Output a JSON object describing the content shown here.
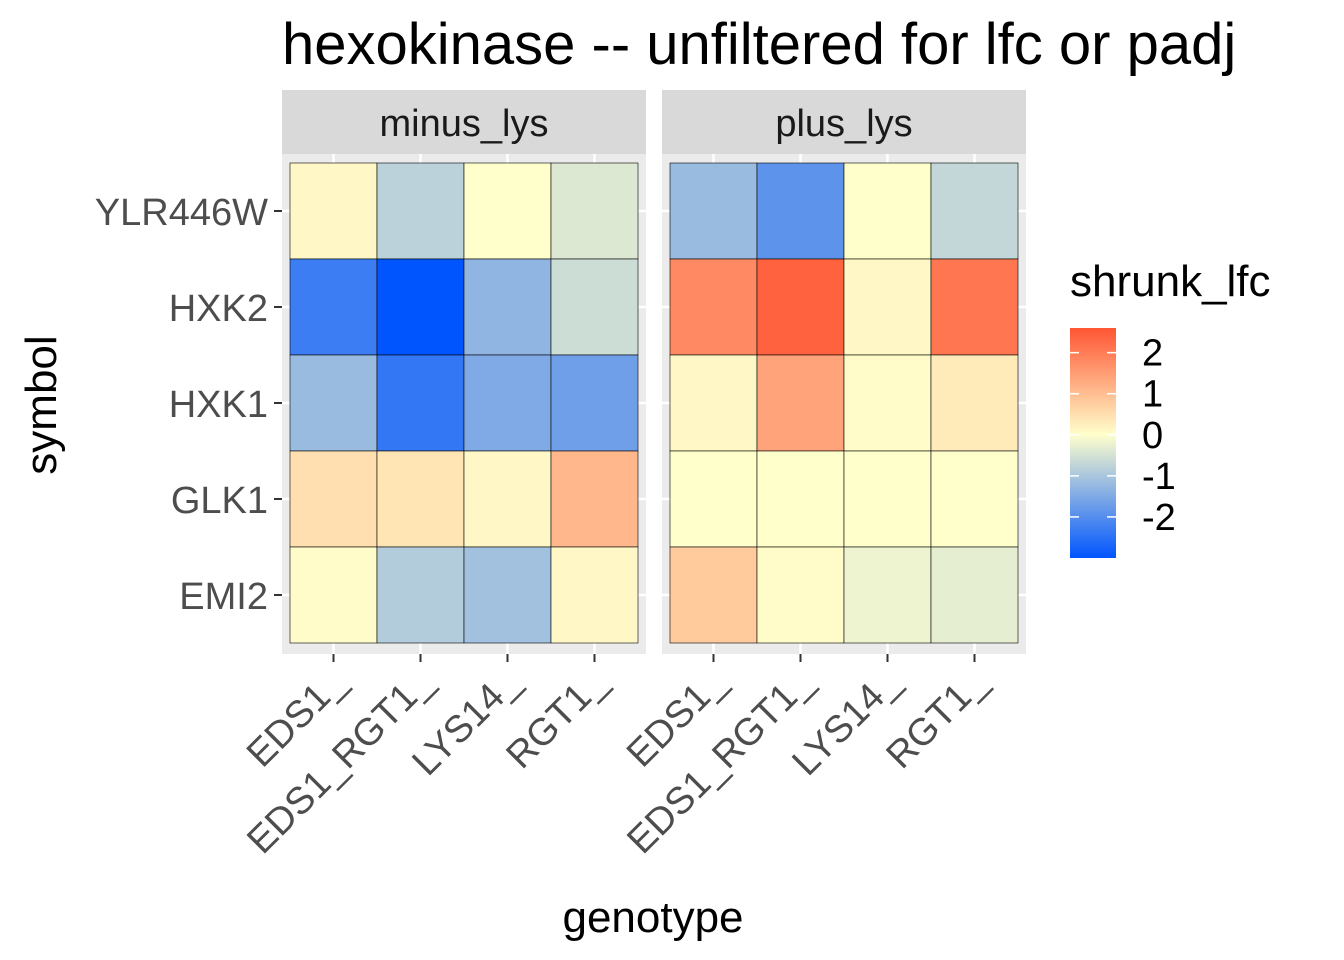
{
  "chart_data": {
    "type": "heatmap",
    "title": "hexokinase -- unfiltered for lfc or padj",
    "xlabel": "genotype",
    "ylabel": "symbol",
    "facets": [
      "minus_lys",
      "plus_lys"
    ],
    "x_categories": [
      "EDS1_",
      "EDS1_RGT1_",
      "LYS14_",
      "RGT1_"
    ],
    "y_categories": [
      "YLR446W",
      "HXK2",
      "HXK1",
      "GLK1",
      "EMI2"
    ],
    "values": {
      "minus_lys": [
        [
          0.1,
          -0.8,
          0.0,
          -0.4
        ],
        [
          -2.3,
          -3.0,
          -1.3,
          -0.6
        ],
        [
          -1.2,
          -2.4,
          -1.5,
          -1.7
        ],
        [
          0.5,
          0.4,
          0.1,
          1.1
        ],
        [
          0.05,
          -0.9,
          -1.1,
          0.1
        ]
      ],
      "plus_lys": [
        [
          -1.2,
          -1.9,
          0.0,
          -0.7
        ],
        [
          1.8,
          2.4,
          0.1,
          2.1
        ],
        [
          0.1,
          1.4,
          0.05,
          0.3
        ],
        [
          0.0,
          0.0,
          0.0,
          0.0
        ],
        [
          0.8,
          0.05,
          -0.2,
          -0.3
        ]
      ]
    },
    "legend": {
      "title": "shrunk_lfc",
      "ticks": [
        2,
        1,
        0,
        -1,
        -2
      ],
      "ticks_text": [
        "2",
        "1",
        "0",
        "-1",
        "-2"
      ],
      "range": [
        -3.0,
        2.6
      ],
      "colors": {
        "low": "#0055ff",
        "mid": "#ffffcc",
        "high": "#ff5533"
      }
    },
    "grid": true,
    "legend_position": "right"
  }
}
